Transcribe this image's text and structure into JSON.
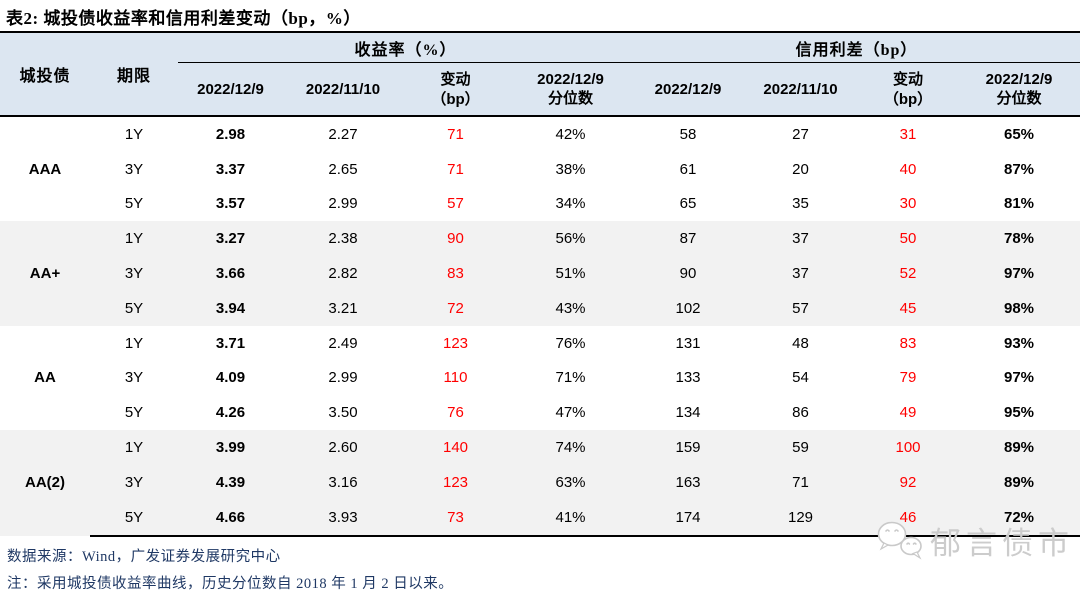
{
  "title": "表2:  城投债收益率和信用利差变动（bp，%）",
  "table": {
    "header": {
      "bond_col": "城投债",
      "tenor_col": "期限",
      "yield_group": "收益率（%）",
      "spread_group": "信用利差（bp）",
      "date_current": "2022/12/9",
      "date_prev": "2022/11/10",
      "change_line1": "变动",
      "change_line2": "（bp）",
      "pct_line1": "2022/12/9",
      "pct_line2": "分位数"
    },
    "groups": [
      {
        "rating": "AAA",
        "rows": [
          {
            "tenor": "1Y",
            "y1": "2.98",
            "y2": "2.27",
            "ychg": "71",
            "ypct": "42%",
            "s1": "58",
            "s2": "27",
            "schg": "31",
            "spct": "65%"
          },
          {
            "tenor": "3Y",
            "y1": "3.37",
            "y2": "2.65",
            "ychg": "71",
            "ypct": "38%",
            "s1": "61",
            "s2": "20",
            "schg": "40",
            "spct": "87%"
          },
          {
            "tenor": "5Y",
            "y1": "3.57",
            "y2": "2.99",
            "ychg": "57",
            "ypct": "34%",
            "s1": "65",
            "s2": "35",
            "schg": "30",
            "spct": "81%"
          }
        ]
      },
      {
        "rating": "AA+",
        "rows": [
          {
            "tenor": "1Y",
            "y1": "3.27",
            "y2": "2.38",
            "ychg": "90",
            "ypct": "56%",
            "s1": "87",
            "s2": "37",
            "schg": "50",
            "spct": "78%"
          },
          {
            "tenor": "3Y",
            "y1": "3.66",
            "y2": "2.82",
            "ychg": "83",
            "ypct": "51%",
            "s1": "90",
            "s2": "37",
            "schg": "52",
            "spct": "97%"
          },
          {
            "tenor": "5Y",
            "y1": "3.94",
            "y2": "3.21",
            "ychg": "72",
            "ypct": "43%",
            "s1": "102",
            "s2": "57",
            "schg": "45",
            "spct": "98%"
          }
        ]
      },
      {
        "rating": "AA",
        "rows": [
          {
            "tenor": "1Y",
            "y1": "3.71",
            "y2": "2.49",
            "ychg": "123",
            "ypct": "76%",
            "s1": "131",
            "s2": "48",
            "schg": "83",
            "spct": "93%"
          },
          {
            "tenor": "3Y",
            "y1": "4.09",
            "y2": "2.99",
            "ychg": "110",
            "ypct": "71%",
            "s1": "133",
            "s2": "54",
            "schg": "79",
            "spct": "97%"
          },
          {
            "tenor": "5Y",
            "y1": "4.26",
            "y2": "3.50",
            "ychg": "76",
            "ypct": "47%",
            "s1": "134",
            "s2": "86",
            "schg": "49",
            "spct": "95%"
          }
        ]
      },
      {
        "rating": "AA(2)",
        "rows": [
          {
            "tenor": "1Y",
            "y1": "3.99",
            "y2": "2.60",
            "ychg": "140",
            "ypct": "74%",
            "s1": "159",
            "s2": "59",
            "schg": "100",
            "spct": "89%"
          },
          {
            "tenor": "3Y",
            "y1": "4.39",
            "y2": "3.16",
            "ychg": "123",
            "ypct": "63%",
            "s1": "163",
            "s2": "71",
            "schg": "92",
            "spct": "89%"
          },
          {
            "tenor": "5Y",
            "y1": "4.66",
            "y2": "3.93",
            "ychg": "73",
            "ypct": "41%",
            "s1": "174",
            "s2": "129",
            "schg": "46",
            "spct": "72%"
          }
        ]
      }
    ]
  },
  "footer": {
    "source": "数据来源：Wind，广发证券发展研究中心",
    "note": "注：采用城投债收益率曲线，历史分位数自 2018 年 1 月 2 日以来。"
  },
  "watermark": {
    "text": "郁言债市",
    "icon": "wechat-icon"
  },
  "colors": {
    "header_bg": "#DCE6F1",
    "alt_band_bg": "#F2F2F2",
    "change_red": "#FF0000",
    "footer_navy": "#1F3864",
    "watermark_gray": "#CCCCCC"
  }
}
